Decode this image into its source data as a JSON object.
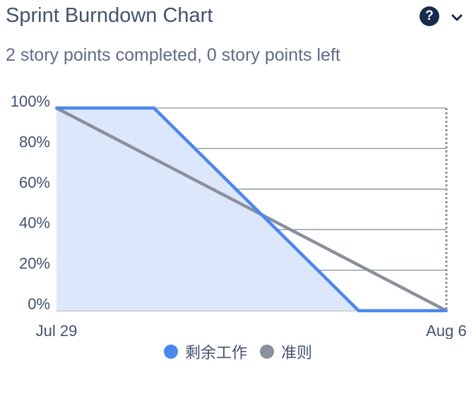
{
  "header": {
    "title": "Sprint Burndown Chart",
    "subtitle": "2 story points completed, 0 story points left",
    "help_icon": "question-circle-icon",
    "chevron_icon": "chevron-down-icon",
    "help_glyph": "?"
  },
  "colors": {
    "remaining": "#4c86f0",
    "remaining_fill": "#dde7fb",
    "guideline": "#8a909c",
    "grid": "#8a919e",
    "text": "#42526e"
  },
  "chart_data": {
    "type": "area",
    "title": "Sprint Burndown Chart",
    "x_start": "Jul 29",
    "x_end": "Aug 6",
    "x_tick_labels": [
      "Jul 29",
      "Aug 6"
    ],
    "xlim": [
      0,
      8
    ],
    "y_tick_labels": [
      "100%",
      "80%",
      "60%",
      "40%",
      "20%",
      "0%"
    ],
    "ylim": [
      0,
      100
    ],
    "grid": true,
    "legend_position": "bottom",
    "series": [
      {
        "name": "剩余工作",
        "x": [
          0,
          2.0,
          6.2,
          8.0
        ],
        "y": [
          100,
          100,
          0,
          0
        ]
      },
      {
        "name": "准则",
        "x": [
          0,
          8.0
        ],
        "y": [
          100,
          0
        ]
      }
    ]
  }
}
